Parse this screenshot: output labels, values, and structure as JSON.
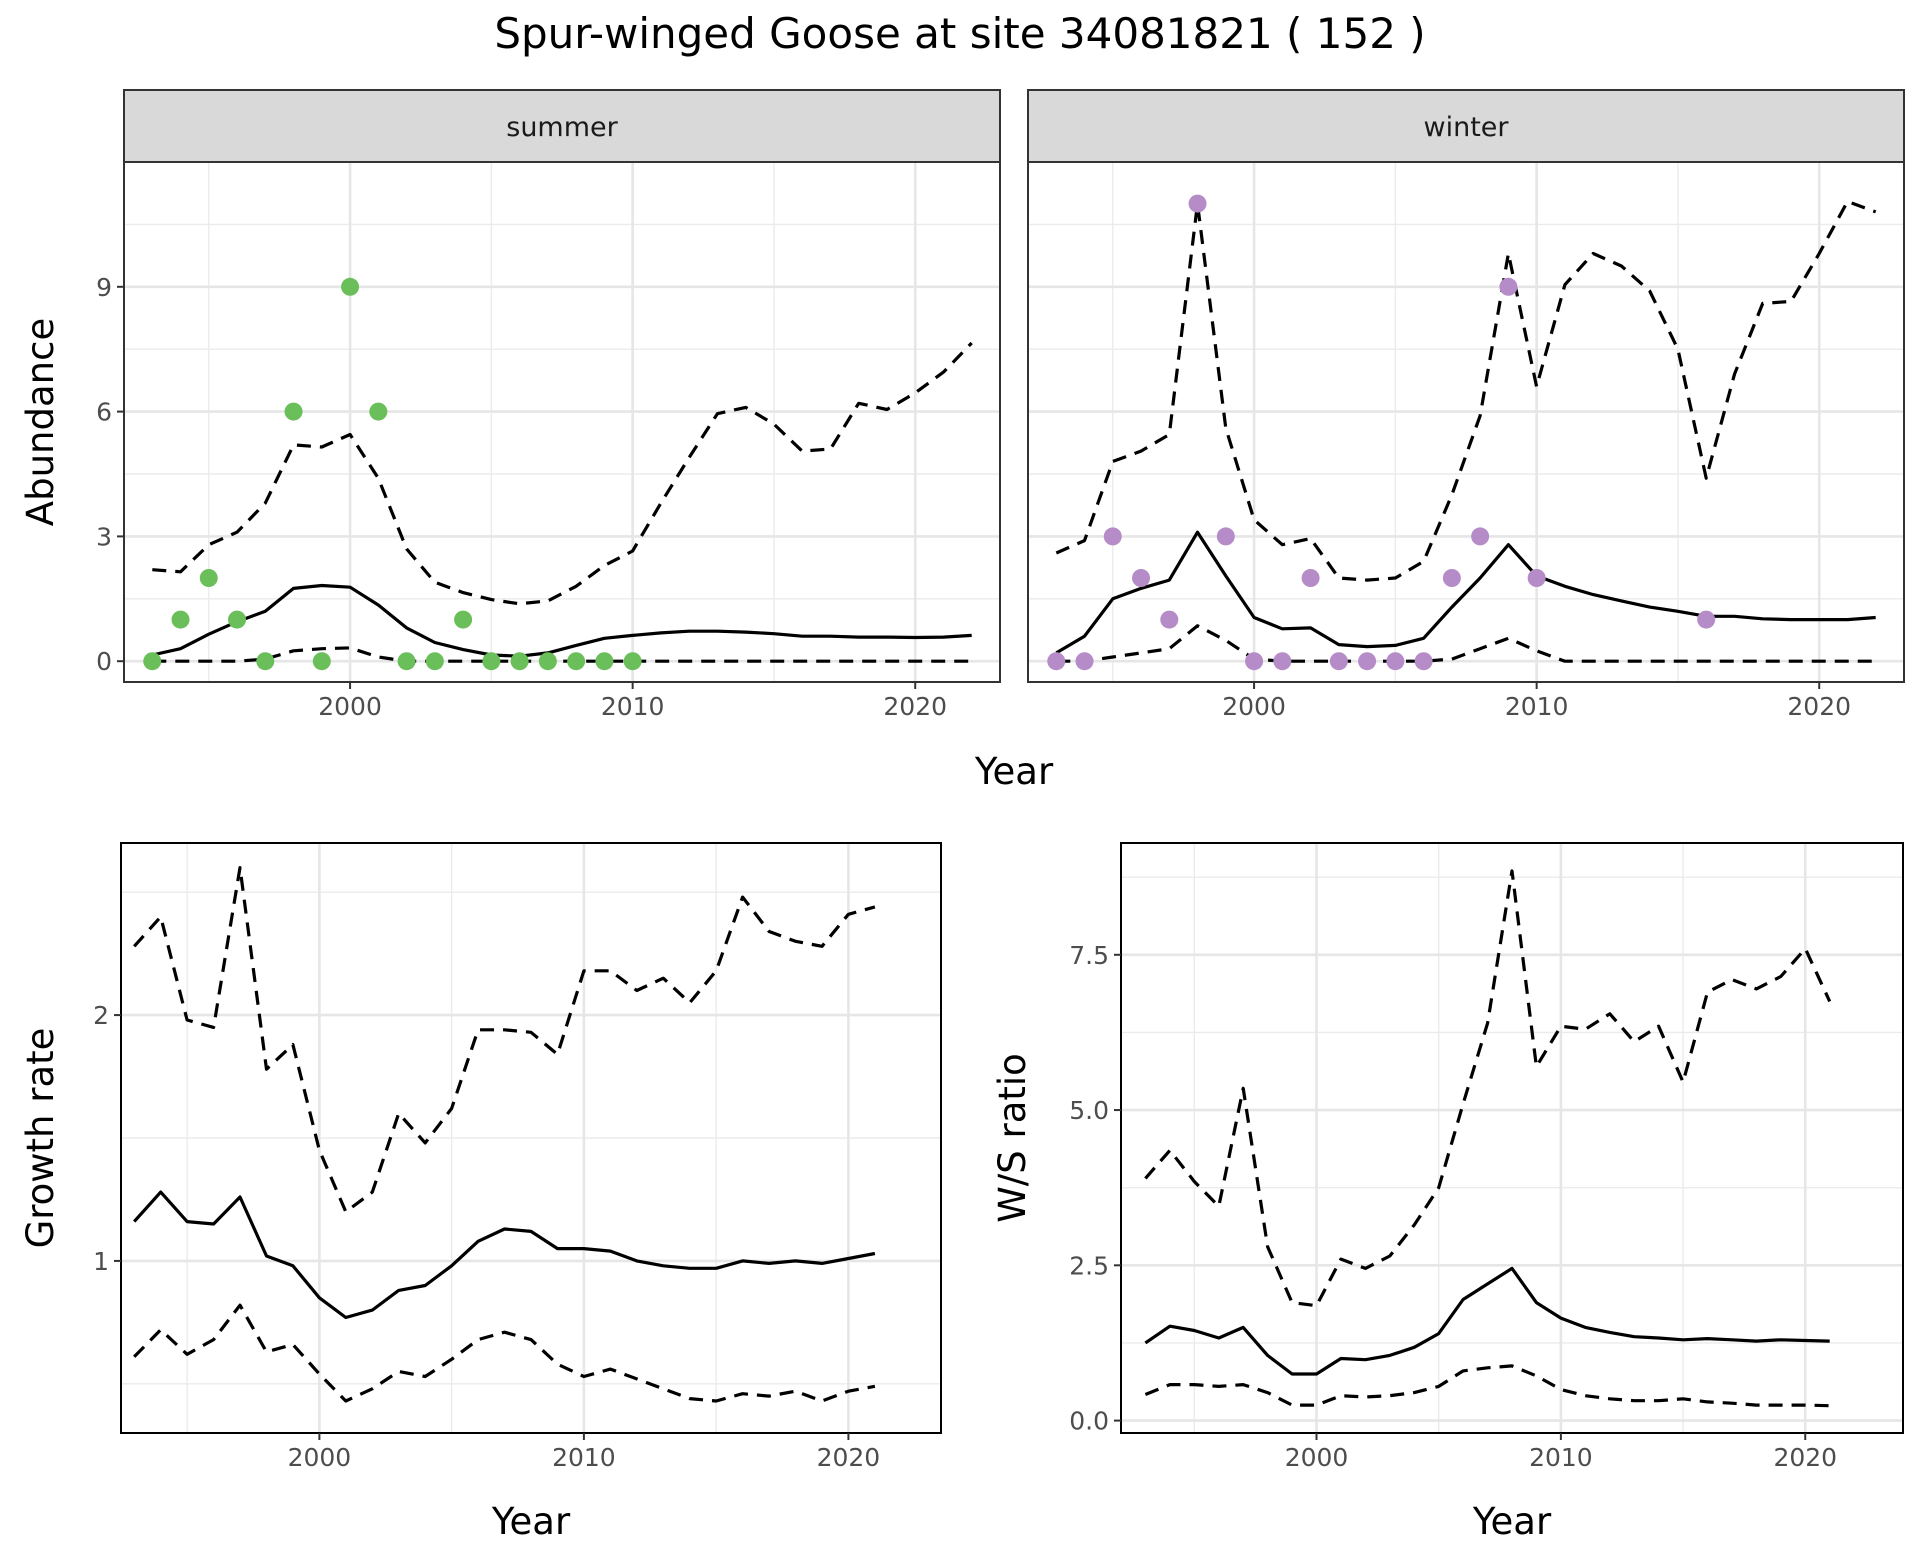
{
  "title": "Spur-winged Goose at site 34081821 ( 152 )",
  "chart_data": [
    {
      "type": "line",
      "panel": "abundance",
      "facets": [
        "summer",
        "winter"
      ],
      "xlabel": "Year",
      "ylabel": "Abundance",
      "xlim": [
        1992,
        2023
      ],
      "ylim": [
        -0.5,
        12.0
      ],
      "x_ticks": [
        "2000",
        "2010",
        "2020"
      ],
      "y_ticks": [
        "0",
        "3",
        "6",
        "9"
      ],
      "grid": true,
      "facet_data": [
        {
          "name": "summer",
          "point_color": "#6abf5a",
          "points": {
            "x": [
              1993,
              1994,
              1995,
              1996,
              1997,
              1998,
              1999,
              2000,
              2001,
              2002,
              2003,
              2004,
              2005,
              2006,
              2007,
              2008,
              2009,
              2010
            ],
            "y": [
              0,
              1,
              2,
              1,
              0,
              6,
              0,
              9,
              6,
              0,
              0,
              1,
              0,
              0,
              0,
              0,
              0,
              0
            ]
          },
          "mean": {
            "x": [
              1993,
              1994,
              1995,
              1996,
              1997,
              1998,
              1999,
              2000,
              2001,
              2002,
              2003,
              2004,
              2005,
              2006,
              2007,
              2008,
              2009,
              2010,
              2011,
              2012,
              2013,
              2014,
              2015,
              2016,
              2017,
              2018,
              2019,
              2020,
              2021,
              2022
            ],
            "y": [
              0.15,
              0.3,
              0.65,
              0.95,
              1.2,
              1.75,
              1.82,
              1.78,
              1.35,
              0.8,
              0.45,
              0.28,
              0.15,
              0.12,
              0.2,
              0.38,
              0.55,
              0.62,
              0.68,
              0.72,
              0.72,
              0.7,
              0.66,
              0.6,
              0.6,
              0.58,
              0.58,
              0.57,
              0.58,
              0.62
            ]
          },
          "upper": {
            "x": [
              1993,
              1994,
              1995,
              1996,
              1997,
              1998,
              1999,
              2000,
              2001,
              2002,
              2003,
              2004,
              2005,
              2006,
              2007,
              2008,
              2009,
              2010,
              2011,
              2012,
              2013,
              2014,
              2015,
              2016,
              2017,
              2018,
              2019,
              2020,
              2021,
              2022
            ],
            "y": [
              2.2,
              2.15,
              2.8,
              3.1,
              3.8,
              5.2,
              5.15,
              5.45,
              4.4,
              2.7,
              1.9,
              1.65,
              1.48,
              1.38,
              1.45,
              1.8,
              2.3,
              2.65,
              3.8,
              4.9,
              5.95,
              6.1,
              5.7,
              5.05,
              5.1,
              6.2,
              6.05,
              6.45,
              6.95,
              7.65
            ]
          },
          "lower": {
            "x": [
              1993,
              1994,
              1995,
              1996,
              1997,
              1998,
              1999,
              2000,
              2001,
              2002,
              2003,
              2004,
              2005,
              2006,
              2007,
              2008,
              2009,
              2010,
              2011,
              2012,
              2013,
              2014,
              2015,
              2016,
              2017,
              2018,
              2019,
              2020,
              2021,
              2022
            ],
            "y": [
              0,
              0,
              0,
              0,
              0.05,
              0.25,
              0.3,
              0.32,
              0.1,
              0,
              0,
              0,
              0,
              0,
              0,
              0,
              0,
              0,
              0,
              0,
              0,
              0,
              0,
              0,
              0,
              0,
              0,
              0,
              0,
              0
            ]
          }
        },
        {
          "name": "winter",
          "point_color": "#b58bc8",
          "points": {
            "x": [
              1993,
              1994,
              1995,
              1996,
              1997,
              1998,
              1999,
              2000,
              2001,
              2002,
              2003,
              2004,
              2005,
              2006,
              2007,
              2008,
              2009,
              2010,
              2016
            ],
            "y": [
              0,
              0,
              3,
              2,
              1,
              11,
              3,
              0,
              0,
              2,
              0,
              0,
              0,
              0,
              2,
              3,
              9,
              2,
              1
            ]
          },
          "mean": {
            "x": [
              1993,
              1994,
              1995,
              1996,
              1997,
              1998,
              1999,
              2000,
              2001,
              2002,
              2003,
              2004,
              2005,
              2006,
              2007,
              2008,
              2009,
              2010,
              2011,
              2012,
              2013,
              2014,
              2015,
              2016,
              2017,
              2018,
              2019,
              2020,
              2021,
              2022
            ],
            "y": [
              0.2,
              0.6,
              1.5,
              1.75,
              1.95,
              3.1,
              2.05,
              1.05,
              0.78,
              0.8,
              0.4,
              0.35,
              0.38,
              0.55,
              1.3,
              2.0,
              2.8,
              2.05,
              1.8,
              1.6,
              1.45,
              1.3,
              1.2,
              1.08,
              1.08,
              1.02,
              1.0,
              1.0,
              1.0,
              1.05
            ]
          },
          "upper": {
            "x": [
              1993,
              1994,
              1995,
              1996,
              1997,
              1998,
              1999,
              2000,
              2001,
              2002,
              2003,
              2004,
              2005,
              2006,
              2007,
              2008,
              2009,
              2010,
              2011,
              2012,
              2013,
              2014,
              2015,
              2016,
              2017,
              2018,
              2019,
              2020,
              2021,
              2022
            ],
            "y": [
              2.6,
              2.9,
              4.8,
              5.05,
              5.45,
              11.0,
              5.6,
              3.4,
              2.8,
              2.95,
              2.0,
              1.95,
              2.0,
              2.4,
              4.0,
              5.9,
              9.8,
              6.6,
              9.05,
              9.8,
              9.5,
              8.9,
              7.5,
              4.4,
              6.9,
              8.6,
              8.65,
              9.8,
              11.05,
              10.8
            ]
          },
          "lower": {
            "x": [
              1993,
              1994,
              1995,
              1996,
              1997,
              1998,
              1999,
              2000,
              2001,
              2002,
              2003,
              2004,
              2005,
              2006,
              2007,
              2008,
              2009,
              2010,
              2011,
              2012,
              2013,
              2014,
              2015,
              2016,
              2017,
              2018,
              2019,
              2020,
              2021,
              2022
            ],
            "y": [
              0,
              0,
              0.1,
              0.2,
              0.3,
              0.85,
              0.5,
              0.05,
              0,
              0,
              0,
              0,
              0,
              0,
              0.05,
              0.3,
              0.55,
              0.25,
              0,
              0,
              0,
              0,
              0,
              0,
              0,
              0,
              0,
              0,
              0,
              0
            ]
          }
        }
      ]
    },
    {
      "type": "line",
      "panel": "growth-rate",
      "xlabel": "Year",
      "ylabel": "Growth rate",
      "xlim": [
        1992.5,
        2023.5
      ],
      "ylim": [
        0.3,
        2.7
      ],
      "x_ticks": [
        "2000",
        "2010",
        "2020"
      ],
      "y_ticks": [
        "1",
        "2"
      ],
      "grid": true,
      "series": [
        {
          "line": "solid",
          "x": [
            1993,
            1994,
            1995,
            1996,
            1997,
            1998,
            1999,
            2000,
            2001,
            2002,
            2003,
            2004,
            2005,
            2006,
            2007,
            2008,
            2009,
            2010,
            2011,
            2012,
            2013,
            2014,
            2015,
            2016,
            2017,
            2018,
            2019,
            2020,
            2021
          ],
          "values": [
            1.16,
            1.28,
            1.16,
            1.15,
            1.26,
            1.02,
            0.98,
            0.85,
            0.77,
            0.8,
            0.88,
            0.9,
            0.98,
            1.08,
            1.13,
            1.12,
            1.05,
            1.05,
            1.04,
            1.0,
            0.98,
            0.97,
            0.97,
            1.0,
            0.99,
            1.0,
            0.99,
            1.01,
            1.03
          ]
        },
        {
          "line": "dashed",
          "x": [
            1993,
            1994,
            1995,
            1996,
            1997,
            1998,
            1999,
            2000,
            2001,
            2002,
            2003,
            2004,
            2005,
            2006,
            2007,
            2008,
            2009,
            2010,
            2011,
            2012,
            2013,
            2014,
            2015,
            2016,
            2017,
            2018,
            2019,
            2020,
            2021
          ],
          "values": [
            2.28,
            2.4,
            1.98,
            1.95,
            2.6,
            1.78,
            1.88,
            1.45,
            1.2,
            1.28,
            1.6,
            1.48,
            1.62,
            1.94,
            1.94,
            1.93,
            1.84,
            2.18,
            2.18,
            2.1,
            2.15,
            2.05,
            2.18,
            2.48,
            2.34,
            2.3,
            2.28,
            2.41,
            2.44
          ]
        },
        {
          "line": "dashed",
          "x": [
            1993,
            1994,
            1995,
            1996,
            1997,
            1998,
            1999,
            2000,
            2001,
            2002,
            2003,
            2004,
            2005,
            2006,
            2007,
            2008,
            2009,
            2010,
            2011,
            2012,
            2013,
            2014,
            2015,
            2016,
            2017,
            2018,
            2019,
            2020,
            2021
          ],
          "values": [
            0.61,
            0.72,
            0.62,
            0.68,
            0.82,
            0.63,
            0.66,
            0.54,
            0.43,
            0.48,
            0.55,
            0.53,
            0.6,
            0.68,
            0.71,
            0.68,
            0.58,
            0.53,
            0.56,
            0.52,
            0.48,
            0.44,
            0.43,
            0.46,
            0.45,
            0.47,
            0.43,
            0.47,
            0.49
          ]
        }
      ]
    },
    {
      "type": "line",
      "panel": "ws-ratio",
      "xlabel": "Year",
      "ylabel": "W/S ratio",
      "xlim": [
        1992,
        2024
      ],
      "ylim": [
        -0.2,
        9.3
      ],
      "x_ticks": [
        "2000",
        "2010",
        "2020"
      ],
      "y_ticks": [
        "0.0",
        "2.5",
        "5.0",
        "7.5"
      ],
      "grid": true,
      "series": [
        {
          "line": "solid",
          "x": [
            1993,
            1994,
            1995,
            1996,
            1997,
            1998,
            1999,
            2000,
            2001,
            2002,
            2003,
            2004,
            2005,
            2006,
            2007,
            2008,
            2009,
            2010,
            2011,
            2012,
            2013,
            2014,
            2015,
            2016,
            2017,
            2018,
            2019,
            2020,
            2021
          ],
          "values": [
            1.25,
            1.52,
            1.45,
            1.33,
            1.5,
            1.05,
            0.75,
            0.75,
            1.0,
            0.98,
            1.05,
            1.18,
            1.4,
            1.95,
            2.2,
            2.45,
            1.9,
            1.65,
            1.5,
            1.42,
            1.35,
            1.33,
            1.3,
            1.32,
            1.3,
            1.28,
            1.3,
            1.29,
            1.28
          ]
        },
        {
          "line": "dashed",
          "x": [
            1993,
            1994,
            1995,
            1996,
            1997,
            1998,
            1999,
            2000,
            2001,
            2002,
            2003,
            2004,
            2005,
            2006,
            2007,
            2008,
            2009,
            2010,
            2011,
            2012,
            2013,
            2014,
            2015,
            2016,
            2017,
            2018,
            2019,
            2020,
            2021
          ],
          "values": [
            3.9,
            4.35,
            3.85,
            3.45,
            5.35,
            2.8,
            1.9,
            1.85,
            2.6,
            2.45,
            2.65,
            3.15,
            3.75,
            5.1,
            6.4,
            8.85,
            5.7,
            6.35,
            6.3,
            6.55,
            6.1,
            6.35,
            5.45,
            6.9,
            7.1,
            6.95,
            7.15,
            7.6,
            6.75
          ]
        },
        {
          "line": "dashed",
          "x": [
            1993,
            1994,
            1995,
            1996,
            1997,
            1998,
            1999,
            2000,
            2001,
            2002,
            2003,
            2004,
            2005,
            2006,
            2007,
            2008,
            2009,
            2010,
            2011,
            2012,
            2013,
            2014,
            2015,
            2016,
            2017,
            2018,
            2019,
            2020,
            2021
          ],
          "values": [
            0.42,
            0.58,
            0.58,
            0.55,
            0.58,
            0.45,
            0.25,
            0.25,
            0.4,
            0.38,
            0.4,
            0.45,
            0.55,
            0.8,
            0.85,
            0.88,
            0.72,
            0.5,
            0.4,
            0.35,
            0.32,
            0.32,
            0.35,
            0.3,
            0.28,
            0.25,
            0.25,
            0.25,
            0.24
          ]
        }
      ]
    }
  ]
}
